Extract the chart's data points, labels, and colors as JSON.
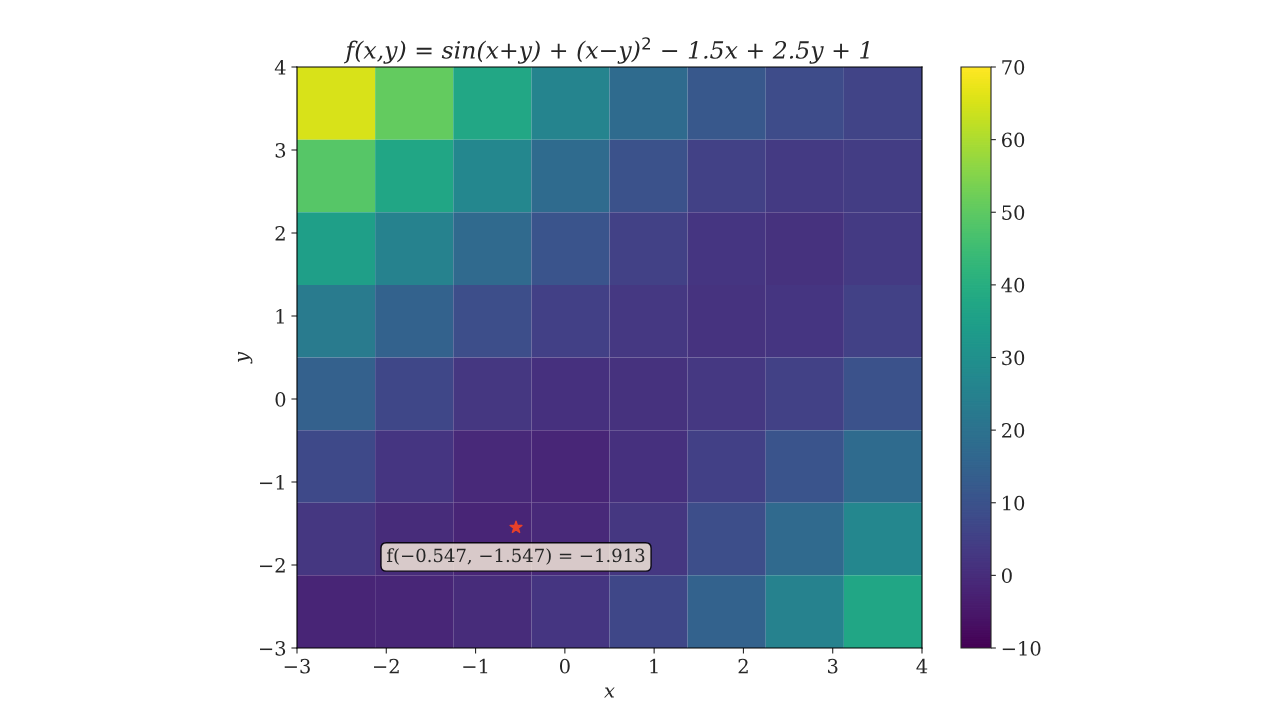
{
  "chart_data": {
    "type": "heatmap",
    "title": "f(x,y) = sin(x+y) + (x−y)$^{2}$ − 1.5x + 2.5y + 1",
    "xlabel": "x",
    "ylabel": "y",
    "cells": [
      [
        65.3,
        50.9,
        37.6,
        26.2,
        17.5,
        11.7,
        8.2,
        6.0
      ],
      [
        49.0,
        37.3,
        26.9,
        17.6,
        10.2,
        5.5,
        3.7,
        4.2
      ],
      [
        34.7,
        25.0,
        17.3,
        10.9,
        5.6,
        2.2,
        1.5,
        3.7
      ],
      [
        23.1,
        14.7,
        9.0,
        5.3,
        2.9,
        1.6,
        2.2,
        5.5
      ],
      [
        14.4,
        7.1,
        2.7,
        1.0,
        1.3,
        2.9,
        5.6,
        10.2
      ],
      [
        7.8,
        2.4,
        -0.9,
        -1.3,
        1.0,
        5.3,
        10.9,
        17.6
      ],
      [
        2.5,
        -0.2,
        -1.6,
        -0.9,
        2.7,
        9.0,
        17.3,
        26.9
      ],
      [
        -1.7,
        -1.5,
        -0.2,
        2.4,
        7.1,
        14.7,
        25.0,
        37.3
      ]
    ],
    "clim": [
      -10,
      70
    ],
    "cticks": [
      {
        "value": -10,
        "label": "−10"
      },
      0,
      10,
      20,
      30,
      40,
      50,
      60,
      70
    ],
    "xlim": [
      -3,
      4
    ],
    "ylim": [
      -3,
      4
    ],
    "xticks": [
      {
        "value": -3,
        "label": "−3"
      },
      {
        "value": -2,
        "label": "−2"
      },
      {
        "value": -1,
        "label": "−1"
      },
      0,
      1,
      2,
      3,
      4
    ],
    "yticks": [
      {
        "value": -3,
        "label": "−3"
      },
      {
        "value": -2,
        "label": "−2"
      },
      {
        "value": -1,
        "label": "−1"
      },
      0,
      1,
      2,
      3,
      4
    ],
    "series": [
      {
        "type": "scatter",
        "color": "#e8402a",
        "marker": "star",
        "x": [
          -0.547
        ],
        "values": [
          -1.547
        ]
      }
    ],
    "annotations": [
      {
        "text": "f(−0.547, −1.547) = −1.913",
        "x": -0.547,
        "y": -1.547
      }
    ]
  }
}
